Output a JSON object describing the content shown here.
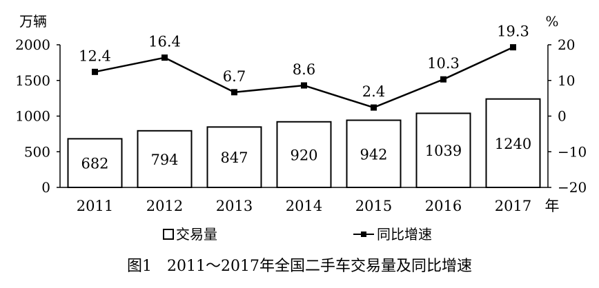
{
  "chart_data": {
    "type": "bar+line",
    "title": "图1　2011～2017年全国二手车交易量及同比增速",
    "categories": [
      "2011",
      "2012",
      "2013",
      "2014",
      "2015",
      "2016",
      "2017"
    ],
    "x_unit": "年",
    "series": [
      {
        "name": "交易量",
        "type": "bar",
        "axis": "left",
        "values": [
          682,
          794,
          847,
          920,
          942,
          1039,
          1240
        ]
      },
      {
        "name": "同比增速",
        "type": "line",
        "axis": "right",
        "values": [
          12.4,
          16.4,
          6.7,
          8.6,
          2.4,
          10.3,
          19.3
        ]
      }
    ],
    "left_axis": {
      "unit": "万辆",
      "ylim": [
        0,
        2000
      ],
      "ticks": [
        0,
        500,
        1000,
        1500,
        2000
      ]
    },
    "right_axis": {
      "unit": "%",
      "ylim": [
        -20,
        20
      ],
      "ticks": [
        -20,
        -10,
        0,
        10,
        20
      ]
    },
    "bar_labels": [
      "682",
      "794",
      "847",
      "920",
      "942",
      "1039",
      "1240"
    ],
    "line_labels": [
      "12.4",
      "16.4",
      "6.7",
      "8.6",
      "2.4",
      "10.3",
      "19.3"
    ],
    "legend_position": "bottom",
    "grid": false,
    "colors": {
      "bar_fill": "#ffffff",
      "bar_stroke": "#000000",
      "line": "#000000",
      "marker": "#000000"
    }
  }
}
